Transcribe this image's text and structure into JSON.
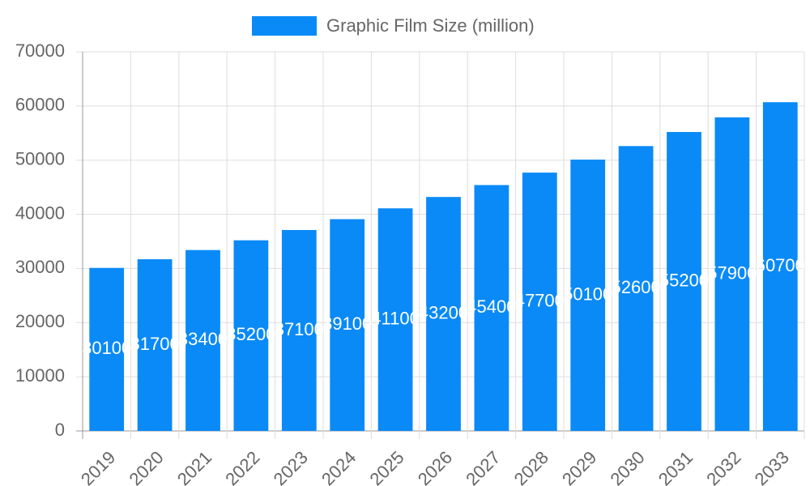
{
  "chart_data": {
    "type": "bar",
    "categories": [
      "2019",
      "2020",
      "2021",
      "2022",
      "2023",
      "2024",
      "2025",
      "2026",
      "2027",
      "2028",
      "2029",
      "2030",
      "2031",
      "2032",
      "2033"
    ],
    "series": [
      {
        "name": "Graphic Film Size (million)",
        "color": "#0a8af7",
        "values": [
          30100,
          31700,
          33400,
          35200,
          37100,
          39100,
          41100,
          43200,
          45400,
          47700,
          50100,
          52600,
          55200,
          57900,
          60700
        ]
      }
    ],
    "ylim": [
      0,
      70000
    ],
    "yticks": [
      0,
      10000,
      20000,
      30000,
      40000,
      50000,
      60000,
      70000
    ],
    "grid": true,
    "legend": "top"
  }
}
